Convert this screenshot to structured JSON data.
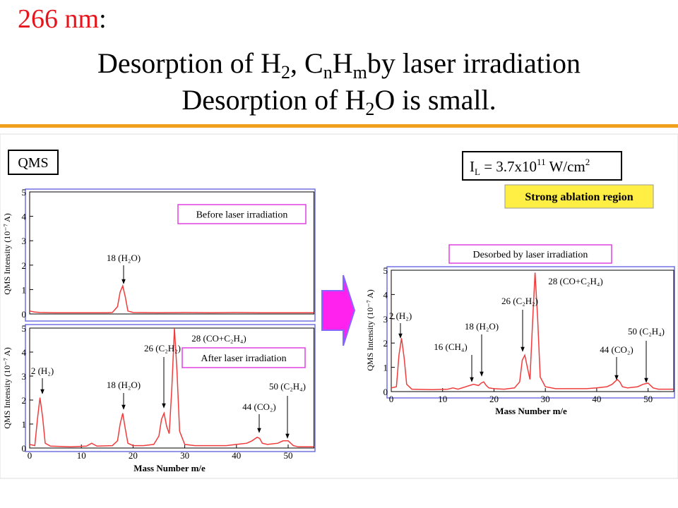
{
  "slide": {
    "heading": "266 nm",
    "heading_colon": ":",
    "line1": [
      "Desorption of H",
      "2",
      ", C",
      "n",
      "H",
      "m",
      "by laser irradiation"
    ],
    "line2": [
      "Desorption of H",
      "2",
      "O is small."
    ],
    "qms_box": "QMS",
    "intensity_box": [
      "I",
      "L",
      " = 3.7x10",
      "11",
      " W/cm",
      "2"
    ],
    "region_box": "Strong ablation region"
  },
  "chart_data": [
    {
      "type": "line",
      "box_label": "Before laser irradiation",
      "ylabel": "QMS Intensity (10⁻⁷ A)",
      "xlim": [
        0,
        55
      ],
      "ylim": [
        0,
        5
      ],
      "yticks": [
        0,
        1,
        2,
        3,
        4,
        5
      ],
      "color": "#f03c3c",
      "x": [
        0,
        1,
        2,
        5,
        10,
        15,
        16,
        17,
        17.5,
        18,
        18.5,
        19,
        20,
        25,
        30,
        35,
        40,
        45,
        50,
        55
      ],
      "values": [
        0.12,
        0.08,
        0.06,
        0.05,
        0.05,
        0.05,
        0.06,
        0.3,
        0.9,
        1.15,
        0.7,
        0.12,
        0.06,
        0.05,
        0.06,
        0.05,
        0.06,
        0.05,
        0.05,
        0.05
      ],
      "annotations": [
        "18 (H₂O)"
      ]
    },
    {
      "type": "line",
      "box_label": "After laser irradiation",
      "ylabel": "QMS Intensity (10⁻⁷ A)",
      "xlabel": "Mass Number m/e",
      "xlim": [
        0,
        55
      ],
      "ylim": [
        0,
        5
      ],
      "yticks": [
        0,
        1,
        2,
        3,
        4,
        5
      ],
      "xticks": [
        0,
        10,
        20,
        30,
        40,
        50
      ],
      "color": "#f03c3c",
      "x": [
        0,
        1,
        1.5,
        2,
        2.5,
        3,
        4,
        8,
        11,
        12,
        13,
        16,
        17,
        17.5,
        18,
        18.5,
        19,
        20,
        22,
        24,
        25,
        25.5,
        26,
        26.5,
        27,
        27.5,
        28,
        28.5,
        29,
        30,
        32,
        38,
        40,
        42,
        43,
        44,
        44.5,
        45,
        46,
        48,
        49,
        50,
        50.5,
        51,
        52,
        55
      ],
      "values": [
        0.15,
        0.1,
        1.2,
        2.1,
        1.3,
        0.2,
        0.08,
        0.05,
        0.08,
        0.2,
        0.08,
        0.1,
        0.3,
        1.0,
        1.45,
        0.8,
        0.2,
        0.1,
        0.1,
        0.15,
        0.5,
        1.2,
        1.45,
        0.9,
        0.6,
        2.5,
        5.0,
        3.2,
        0.7,
        0.15,
        0.1,
        0.1,
        0.15,
        0.2,
        0.3,
        0.45,
        0.4,
        0.2,
        0.15,
        0.2,
        0.3,
        0.3,
        0.2,
        0.1,
        0.05,
        0.05
      ],
      "annotations": [
        "2 (H₂)",
        "18 (H₂O)",
        "26 (C₂H₂)",
        "28 (CO+C₂H₄)",
        "44 (CO₂)",
        "50 (C₂H₄)"
      ]
    },
    {
      "type": "line",
      "box_label": "Desorbed by laser irradiation",
      "ylabel": "QMS Intensity (10⁻⁷ A)",
      "xlabel": "Mass Number m/e",
      "xlim": [
        0,
        55
      ],
      "ylim": [
        0,
        5
      ],
      "yticks": [
        0,
        1,
        2,
        3,
        4,
        5
      ],
      "xticks": [
        0,
        10,
        20,
        30,
        40,
        50
      ],
      "color": "#f03c3c",
      "x": [
        0,
        1,
        1.5,
        2,
        2.5,
        3,
        4,
        8,
        11,
        12,
        13,
        16,
        17,
        17.5,
        18,
        18.5,
        19,
        20,
        22,
        24,
        25,
        25.5,
        26,
        26.5,
        27,
        27.5,
        28,
        28.5,
        29,
        30,
        32,
        38,
        40,
        42,
        43,
        44,
        44.5,
        45,
        46,
        48,
        49,
        50,
        50.5,
        51,
        52,
        55
      ],
      "values": [
        0.15,
        0.2,
        1.5,
        2.2,
        1.4,
        0.3,
        0.1,
        0.08,
        0.1,
        0.15,
        0.1,
        0.3,
        0.25,
        0.35,
        0.4,
        0.25,
        0.15,
        0.12,
        0.1,
        0.15,
        0.4,
        1.3,
        1.5,
        1.0,
        0.5,
        2.8,
        4.9,
        3.0,
        0.6,
        0.2,
        0.12,
        0.12,
        0.15,
        0.2,
        0.3,
        0.5,
        0.4,
        0.2,
        0.15,
        0.2,
        0.3,
        0.35,
        0.25,
        0.15,
        0.1,
        0.1
      ],
      "annotations": [
        "2 (H₂)",
        "16 (CH₄)",
        "18 (H₂O)",
        "26 (C₂H₂)",
        "28 (CO+C₂H₄)",
        "44 (CO₂)",
        "50 (C₂H₄)"
      ]
    }
  ]
}
